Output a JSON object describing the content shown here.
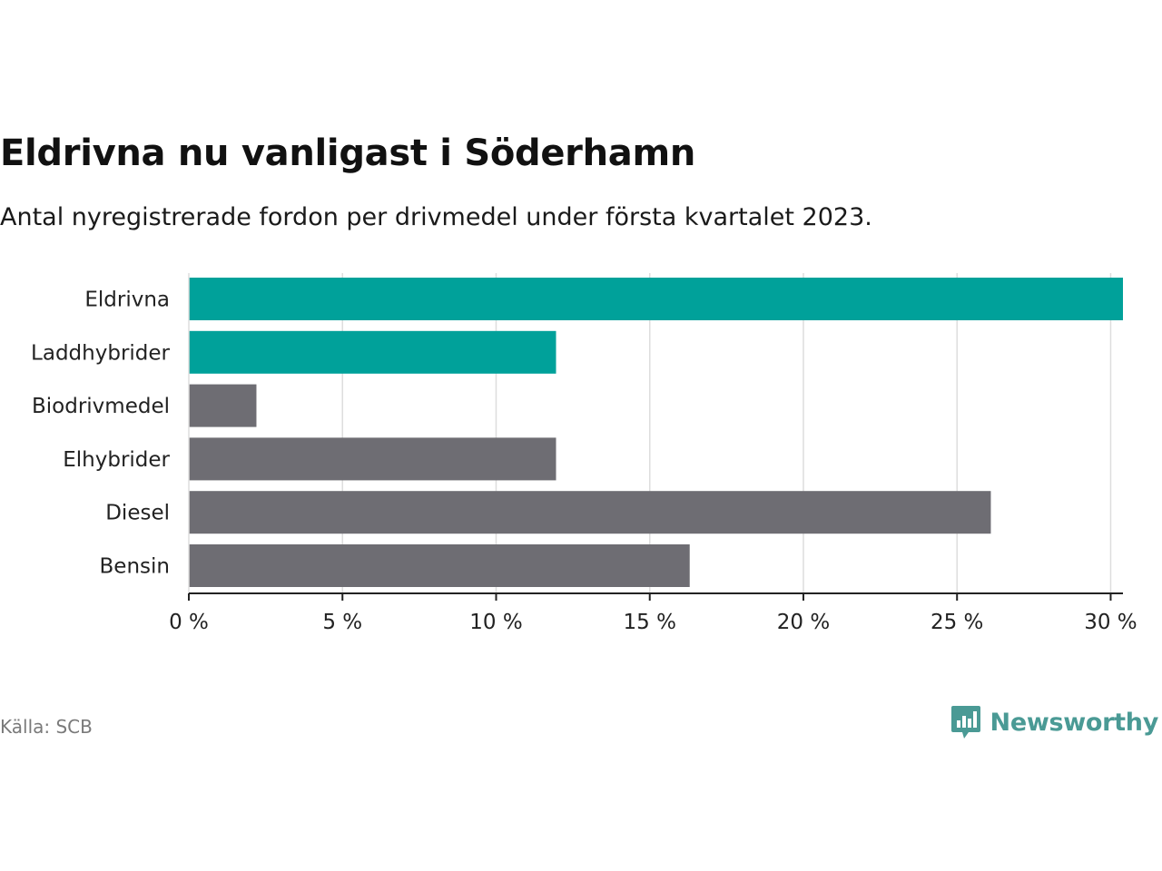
{
  "title": "Eldrivna nu vanligast i Söderhamn",
  "subtitle": "Antal nyregistrerade fordon per drivmedel under första kvartalet 2023.",
  "source": "Källa: SCB",
  "brand": {
    "name": "Newsworthy",
    "icon": "newsworthy-logo-icon"
  },
  "colors": {
    "highlight": "#00a19a",
    "default": "#6e6d73",
    "grid": "#dddddd",
    "axis": "#222222"
  },
  "chart_data": {
    "type": "bar",
    "orientation": "horizontal",
    "categories": [
      "Eldrivna",
      "Laddhybrider",
      "Biodrivmedel",
      "Elhybrider",
      "Diesel",
      "Bensin"
    ],
    "values": [
      30.4,
      11.95,
      2.2,
      11.95,
      26.1,
      16.3
    ],
    "highlighted": [
      true,
      true,
      false,
      false,
      false,
      false
    ],
    "xlim": [
      0,
      30.4
    ],
    "ticks": [
      0,
      5,
      10,
      15,
      20,
      25,
      30
    ],
    "tick_labels": [
      "0 %",
      "5 %",
      "10 %",
      "15 %",
      "20 %",
      "25 %",
      "30 %"
    ],
    "grid": true
  }
}
